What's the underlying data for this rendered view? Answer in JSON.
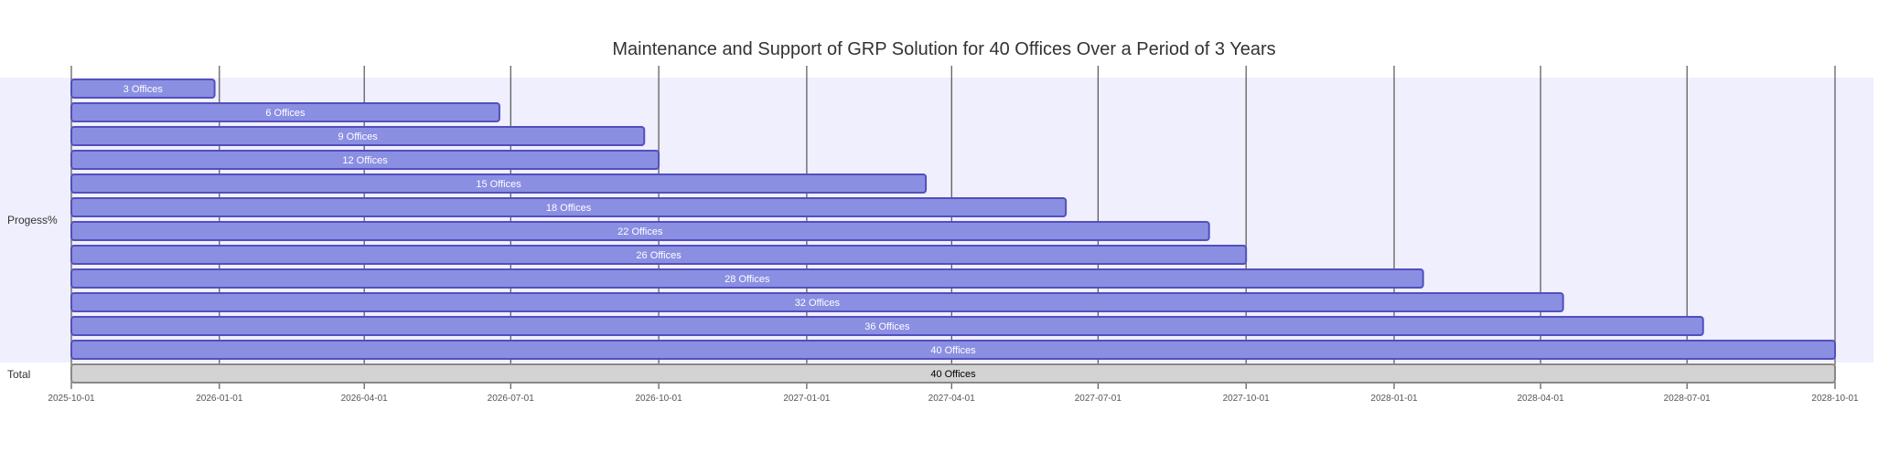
{
  "chart_data": {
    "type": "gantt",
    "title": "Maintenance and Support of GRP Solution for 40 Offices Over a Period of 3 Years",
    "x_ticks": [
      "2025-10-01",
      "2026-01-01",
      "2026-04-01",
      "2026-07-01",
      "2026-10-01",
      "2027-01-01",
      "2027-04-01",
      "2027-07-01",
      "2027-10-01",
      "2028-01-01",
      "2028-04-01",
      "2028-07-01",
      "2028-10-01"
    ],
    "x_range": [
      "2025-10-01",
      "2028-10-01"
    ],
    "grid": true,
    "colors": {
      "bar_fill": "#8a8fe2",
      "bar_stroke": "#534fbc",
      "section_band": "#efeffd",
      "done_fill": "#d3d3d3",
      "done_stroke": "#888888",
      "grid": "#333333"
    },
    "sections": [
      {
        "name": "Progess%",
        "tasks": [
          {
            "label": "3 Offices",
            "start": "2025-10-01",
            "end": "2025-12-29"
          },
          {
            "label": "6 Offices",
            "start": "2025-10-01",
            "end": "2026-06-24"
          },
          {
            "label": "9 Offices",
            "start": "2025-10-01",
            "end": "2026-09-22"
          },
          {
            "label": "12 Offices",
            "start": "2025-10-01",
            "end": "2026-10-01"
          },
          {
            "label": "15 Offices",
            "start": "2025-10-01",
            "end": "2027-03-16"
          },
          {
            "label": "18 Offices",
            "start": "2025-10-01",
            "end": "2027-06-11"
          },
          {
            "label": "22 Offices",
            "start": "2025-10-01",
            "end": "2027-09-08"
          },
          {
            "label": "26 Offices",
            "start": "2025-10-01",
            "end": "2027-10-01"
          },
          {
            "label": "28 Offices",
            "start": "2025-10-01",
            "end": "2028-01-19"
          },
          {
            "label": "32 Offices",
            "start": "2025-10-01",
            "end": "2028-04-15"
          },
          {
            "label": "36 Offices",
            "start": "2025-10-01",
            "end": "2028-07-11"
          },
          {
            "label": "40 Offices",
            "start": "2025-10-01",
            "end": "2028-10-01"
          }
        ]
      },
      {
        "name": "Total",
        "tasks": [
          {
            "label": "40 Offices",
            "start": "2025-10-01",
            "end": "2028-10-01",
            "status": "done"
          }
        ]
      }
    ]
  }
}
